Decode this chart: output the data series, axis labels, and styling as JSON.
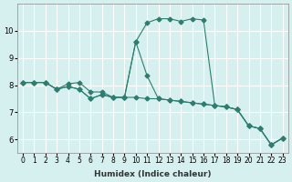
{
  "xlabel": "Humidex (Indice chaleur)",
  "ylabel": "",
  "background_color": "#d6f0ef",
  "grid_color": "#ffffff",
  "line_color": "#2e7d6e",
  "x_values": [
    0,
    1,
    2,
    3,
    4,
    5,
    6,
    7,
    8,
    9,
    10,
    11,
    12,
    13,
    14,
    15,
    16,
    17,
    18,
    19,
    20,
    21,
    22,
    23
  ],
  "series": [
    [
      8.1,
      8.1,
      8.1,
      7.85,
      7.95,
      7.85,
      7.5,
      7.65,
      7.55,
      7.55,
      7.55,
      7.5,
      7.5,
      7.45,
      7.4,
      7.35,
      7.3,
      7.25,
      7.2,
      7.1,
      6.5,
      6.4,
      5.8,
      6.05
    ],
    [
      8.1,
      8.1,
      8.1,
      7.85,
      8.05,
      8.1,
      7.75,
      7.75,
      7.55,
      7.55,
      9.6,
      10.3,
      10.45,
      10.45,
      10.35,
      10.45,
      10.4,
      7.25,
      7.2,
      7.1,
      6.5,
      6.4,
      5.8,
      6.05
    ],
    [
      8.1,
      8.1,
      8.1,
      7.85,
      7.95,
      7.85,
      7.5,
      7.65,
      7.55,
      7.55,
      9.6,
      8.35,
      7.5,
      7.45,
      7.4,
      7.35,
      7.3,
      7.25,
      7.2,
      7.1,
      6.5,
      6.4,
      5.8,
      6.05
    ]
  ],
  "xlim": [
    -0.5,
    23.5
  ],
  "ylim": [
    5.5,
    11.0
  ],
  "yticks": [
    6,
    7,
    8,
    9,
    10
  ],
  "xtick_labels": [
    "0",
    "1",
    "2",
    "3",
    "4",
    "5",
    "6",
    "7",
    "8",
    "9",
    "10",
    "11",
    "12",
    "13",
    "14",
    "15",
    "16",
    "17",
    "18",
    "19",
    "20",
    "21",
    "22",
    "23"
  ],
  "figsize": [
    3.2,
    2.0
  ],
  "dpi": 100
}
